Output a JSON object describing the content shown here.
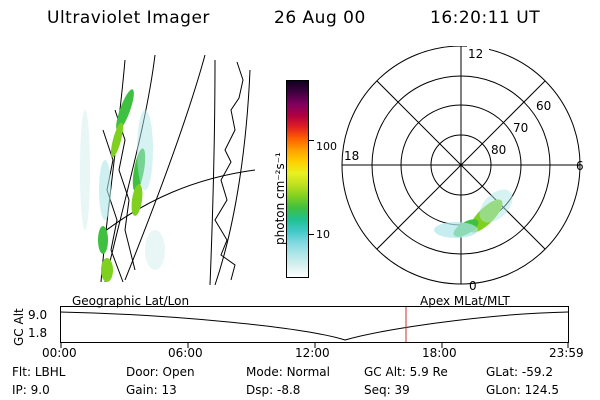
{
  "header": {
    "instrument": "Ultraviolet Imager",
    "date": "26 Aug 00",
    "time": "16:20:11 UT"
  },
  "colorbar": {
    "label": "photon cm⁻²s⁻¹",
    "tick_100": "100",
    "tick_10": "10",
    "colors": [
      "#ffffff",
      "#d8f0f0",
      "#aee6e8",
      "#7fd8e0",
      "#40c8c8",
      "#20c090",
      "#40c040",
      "#80d020",
      "#c0e020",
      "#e8f020",
      "#ffd000",
      "#ffa000",
      "#ff6000",
      "#e02020",
      "#b00040",
      "#800060",
      "#400040",
      "#100020"
    ]
  },
  "polar": {
    "labels": {
      "top": "12",
      "bottom": "0",
      "left": "18",
      "right": "6"
    },
    "rings": [
      "60",
      "70",
      "80"
    ]
  },
  "timeline": {
    "ylabel": "GC Alt",
    "ytick_top": "9.0",
    "ytick_bottom": "1.8",
    "left_label": "Geographic Lat/Lon",
    "right_label": "Apex MLat/MLT",
    "xticks": [
      "00:00",
      "06:00",
      "12:00",
      "18:00",
      "23:59"
    ]
  },
  "status": {
    "col1": [
      {
        "label": "Flt:",
        "value": "LBHL"
      },
      {
        "label": "IP:",
        "value": "9.0"
      }
    ],
    "col2": [
      {
        "label": "Door:",
        "value": "Open"
      },
      {
        "label": "Gain:",
        "value": "13"
      }
    ],
    "col3": [
      {
        "label": "Mode:",
        "value": "Normal"
      },
      {
        "label": "Dsp:",
        "value": "-8.8"
      }
    ],
    "col4": [
      {
        "label": "GC Alt:",
        "value": "5.9 Re"
      },
      {
        "label": "Seq:",
        "value": "39"
      }
    ],
    "col5": [
      {
        "label": "GLat:",
        "value": "-59.2"
      },
      {
        "label": "GLon:",
        "value": "124.5"
      }
    ]
  }
}
